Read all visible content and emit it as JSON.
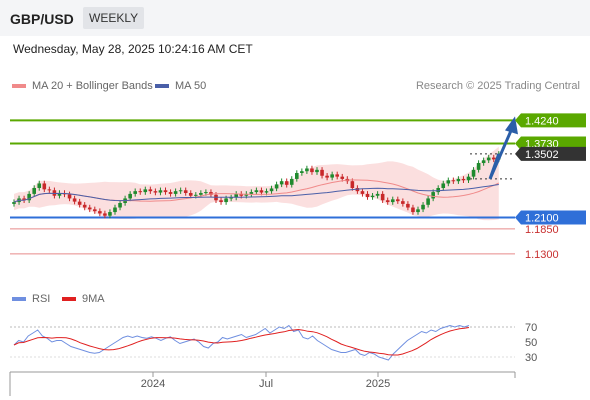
{
  "header": {
    "symbol": "GBP/USD",
    "timeframe": "WEEKLY",
    "datetime": "Wednesday, May 28, 2025 10:24:16 AM CET",
    "credit": "Research © 2025 Trading Central"
  },
  "legend": {
    "ma20_bb": "MA 20 + Bollinger Bands",
    "ma50": "MA 50",
    "rsi": "RSI",
    "ma9": "9MA"
  },
  "colors": {
    "resistance": "#5aa800",
    "support": "#2f6fd8",
    "support_light": "#e88a8a",
    "candle_up": "#1f8a2e",
    "candle_down": "#c8282a",
    "bb_fill": "#f9d4d4",
    "ma20": "#f08a8a",
    "ma50": "#4a5fa8",
    "rsi": "#6f8fe0",
    "ma9": "#e02020",
    "arrow": "#2b5ea8",
    "last_price_bg": "#333333"
  },
  "chart_data": {
    "type": "candlestick",
    "xlabels": [
      "2024",
      "Jul",
      "2025"
    ],
    "ylim": [
      1.09,
      1.46
    ],
    "levels": [
      {
        "price": 1.424,
        "label": "1.4240",
        "kind": "resistance"
      },
      {
        "price": 1.373,
        "label": "1.3730",
        "kind": "resistance"
      },
      {
        "price": 1.3502,
        "label": "1.3502",
        "kind": "last"
      },
      {
        "price": 1.21,
        "label": "1.2100",
        "kind": "support"
      },
      {
        "price": 1.185,
        "label": "1.1850",
        "kind": "support_light"
      },
      {
        "price": 1.13,
        "label": "1.1300",
        "kind": "support_light"
      }
    ],
    "close": [
      1.244,
      1.252,
      1.248,
      1.262,
      1.275,
      1.285,
      1.272,
      1.27,
      1.258,
      1.264,
      1.261,
      1.252,
      1.245,
      1.238,
      1.232,
      1.228,
      1.224,
      1.219,
      1.214,
      1.222,
      1.232,
      1.242,
      1.252,
      1.262,
      1.268,
      1.266,
      1.272,
      1.268,
      1.265,
      1.27,
      1.266,
      1.262,
      1.268,
      1.27,
      1.264,
      1.258,
      1.26,
      1.264,
      1.266,
      1.26,
      1.248,
      1.244,
      1.252,
      1.254,
      1.262,
      1.258,
      1.262,
      1.266,
      1.27,
      1.265,
      1.268,
      1.274,
      1.283,
      1.29,
      1.282,
      1.295,
      1.308,
      1.312,
      1.318,
      1.31,
      1.315,
      1.302,
      1.298,
      1.305,
      1.3,
      1.295,
      1.29,
      1.275,
      1.268,
      1.262,
      1.255,
      1.258,
      1.262,
      1.248,
      1.244,
      1.25,
      1.246,
      1.24,
      1.232,
      1.222,
      1.228,
      1.238,
      1.252,
      1.266,
      1.275,
      1.285,
      1.292,
      1.29,
      1.295,
      1.292,
      1.3,
      1.315,
      1.33,
      1.336,
      1.342,
      1.338,
      1.3502
    ],
    "rsi": [
      46,
      52,
      50,
      58,
      62,
      66,
      58,
      55,
      50,
      52,
      52,
      48,
      44,
      42,
      40,
      38,
      36,
      35,
      36,
      40,
      44,
      48,
      52,
      56,
      58,
      56,
      58,
      56,
      55,
      57,
      55,
      52,
      55,
      57,
      52,
      48,
      50,
      52,
      54,
      50,
      44,
      42,
      48,
      50,
      56,
      54,
      56,
      58,
      60,
      56,
      58,
      60,
      64,
      68,
      62,
      66,
      70,
      68,
      72,
      64,
      66,
      56,
      54,
      58,
      52,
      48,
      44,
      40,
      38,
      36,
      36,
      38,
      40,
      34,
      32,
      36,
      34,
      30,
      28,
      26,
      34,
      40,
      46,
      52,
      56,
      60,
      64,
      62,
      66,
      64,
      68,
      70,
      72,
      70,
      72,
      70,
      72
    ],
    "rsi_ticks": [
      70,
      50,
      30
    ],
    "ma20_rsi_end": 66,
    "projection": {
      "dip": 1.295,
      "target": 1.424
    }
  }
}
